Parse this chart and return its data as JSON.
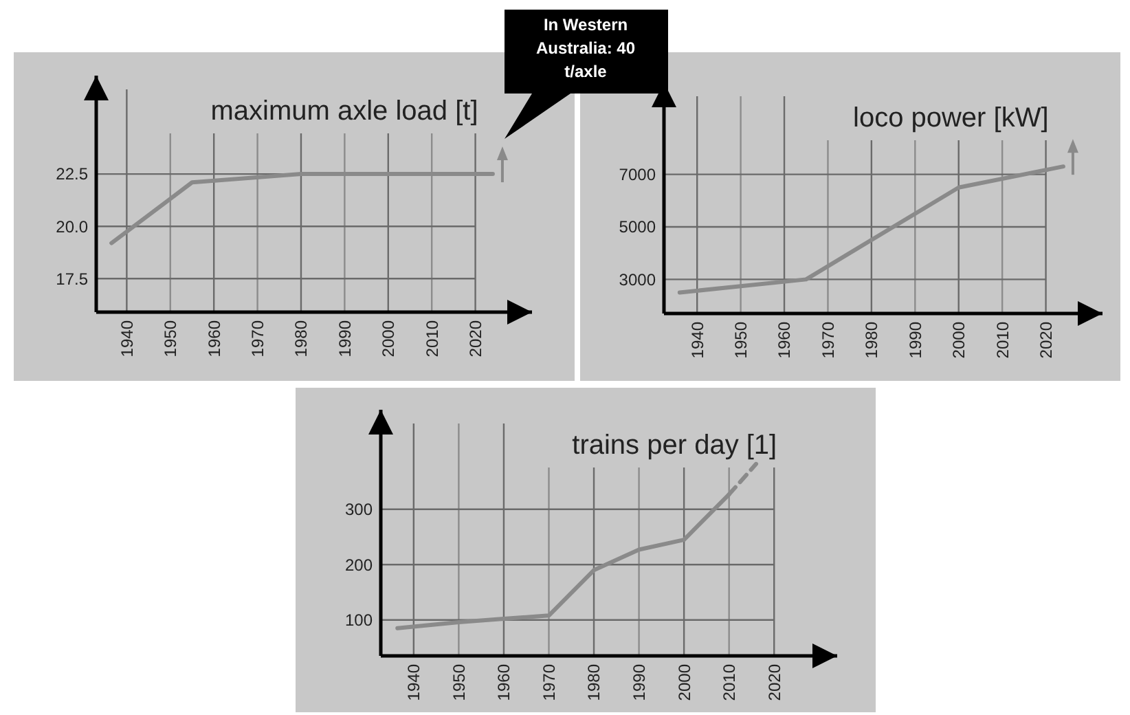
{
  "chart_data": [
    {
      "type": "line",
      "title": "maximum axle load [t]",
      "xlim": [
        1933,
        2033
      ],
      "ylim": [
        15.9,
        27.2
      ],
      "xticks": [
        1940,
        1950,
        1960,
        1970,
        1980,
        1990,
        2000,
        2010,
        2020
      ],
      "yticks": [
        17.5,
        {
          "value": 20,
          "label": "20.0"
        },
        22.5
      ],
      "grid": true,
      "series": [
        {
          "color": "#8a8a8a",
          "x": [
            1936.5,
            1955,
            1980,
            2024
          ],
          "values": [
            19.2,
            22.1,
            22.5,
            22.5
          ]
        }
      ],
      "annotations": [
        "In Western Australia: 40 t/axle"
      ]
    },
    {
      "type": "line",
      "title": "loco power [kW]",
      "xlim": [
        1932.4,
        2033
      ],
      "ylim": [
        1700,
        10500
      ],
      "xticks": [
        1940,
        1950,
        1960,
        1970,
        1980,
        1990,
        2000,
        2010,
        2020
      ],
      "yticks": [
        3000,
        5000,
        7000
      ],
      "grid": true,
      "series": [
        {
          "color": "#8a8a8a",
          "x": [
            1936,
            1965,
            2000,
            2024
          ],
          "values": [
            2500,
            3000,
            6500,
            7300
          ]
        }
      ]
    },
    {
      "type": "line",
      "title": "trains per day [1]",
      "xlim": [
        1932.7,
        2034
      ],
      "ylim": [
        35,
        480
      ],
      "xticks": [
        1940,
        1950,
        1960,
        1970,
        1980,
        1990,
        2000,
        2010,
        2020
      ],
      "yticks": [
        100,
        200,
        300
      ],
      "grid": true,
      "series": [
        {
          "color": "#8a8a8a",
          "x": [
            1936.4,
            1950,
            1960,
            1970,
            1980,
            1990,
            2000,
            2010
          ],
          "values": [
            85,
            96,
            102,
            108,
            190,
            227,
            245,
            327
          ]
        },
        {
          "color": "#8a8a8a",
          "line_style": "dashed",
          "x": [
            2010,
            2016
          ],
          "values": [
            327,
            382
          ]
        }
      ]
    }
  ]
}
